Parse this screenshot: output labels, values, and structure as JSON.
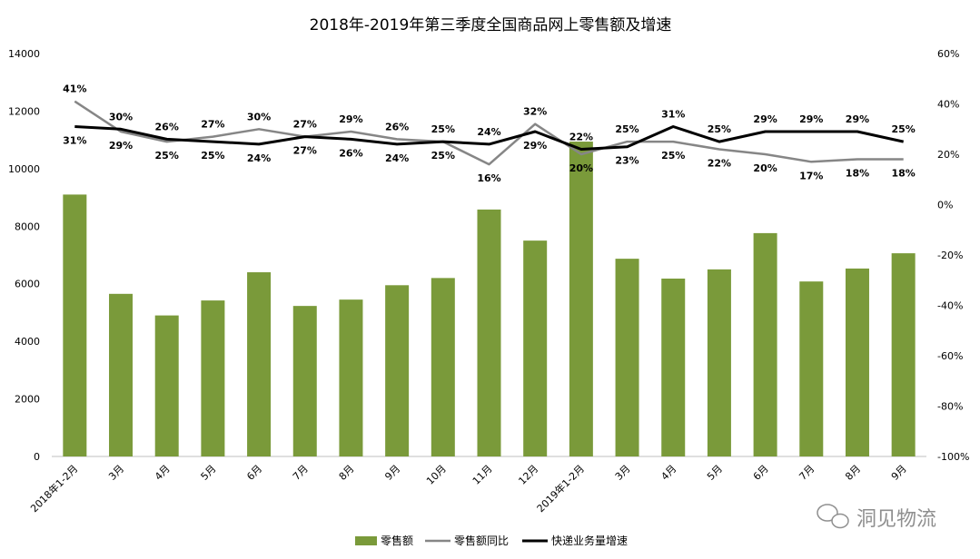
{
  "chart_data": {
    "type": "bar",
    "title": "2018年-2019年第三季度全国商品网上零售额及增速",
    "categories": [
      "2018年1-2月",
      "3月",
      "4月",
      "5月",
      "6月",
      "7月",
      "8月",
      "9月",
      "10月",
      "11月",
      "12月",
      "2019年1-2月",
      "3月",
      "4月",
      "5月",
      "6月",
      "7月",
      "8月",
      "9月"
    ],
    "y_left": {
      "ylim": [
        0,
        14000
      ],
      "ticks": [
        0,
        2000,
        4000,
        6000,
        8000,
        10000,
        12000,
        14000
      ]
    },
    "y_right": {
      "ylim": [
        -100,
        60
      ],
      "ticks": [
        -100,
        -80,
        -60,
        -40,
        -20,
        0,
        20,
        40,
        60
      ],
      "tick_labels": [
        "-100%",
        "-80%",
        "-60%",
        "-40%",
        "-20%",
        "0%",
        "20%",
        "40%",
        "60%"
      ]
    },
    "series": [
      {
        "name": "零售额",
        "type": "bar",
        "axis": "left",
        "color": "#7a9a3a",
        "values": [
          9100,
          5650,
          4900,
          5420,
          6400,
          5230,
          5450,
          5950,
          6200,
          8580,
          7500,
          10940,
          6870,
          6180,
          6500,
          7760,
          6080,
          6530,
          7060
        ]
      },
      {
        "name": "零售额同比",
        "type": "line",
        "axis": "right",
        "color": "#868686",
        "values": [
          41,
          29,
          25,
          27,
          30,
          27,
          29,
          26,
          25,
          16,
          32,
          20,
          25,
          25,
          22,
          20,
          17,
          18,
          18
        ],
        "labels": [
          "41%",
          "29%",
          "25%",
          "27%",
          "30%",
          "27%",
          "29%",
          "26%",
          "25%",
          "16%",
          "32%",
          "20%",
          "25%",
          "25%",
          "22%",
          "20%",
          "17%",
          "18%",
          "18%"
        ]
      },
      {
        "name": "快递业务量增速",
        "type": "line",
        "axis": "right",
        "color": "#000000",
        "values": [
          31,
          30,
          26,
          25,
          24,
          27,
          26,
          24,
          25,
          24,
          29,
          22,
          23,
          31,
          25,
          29,
          29,
          29,
          25
        ],
        "labels": [
          "31%",
          "30%",
          "26%",
          "25%",
          "24%",
          "27%",
          "26%",
          "24%",
          "25%",
          "24%",
          "29%",
          "22%",
          "23%",
          "31%",
          "25%",
          "29%",
          "29%",
          "29%",
          "25%"
        ]
      }
    ],
    "legend": {
      "position": "bottom-center"
    },
    "grid": false
  },
  "watermark": {
    "text": "洞见物流",
    "icon": "wechat-icon"
  }
}
